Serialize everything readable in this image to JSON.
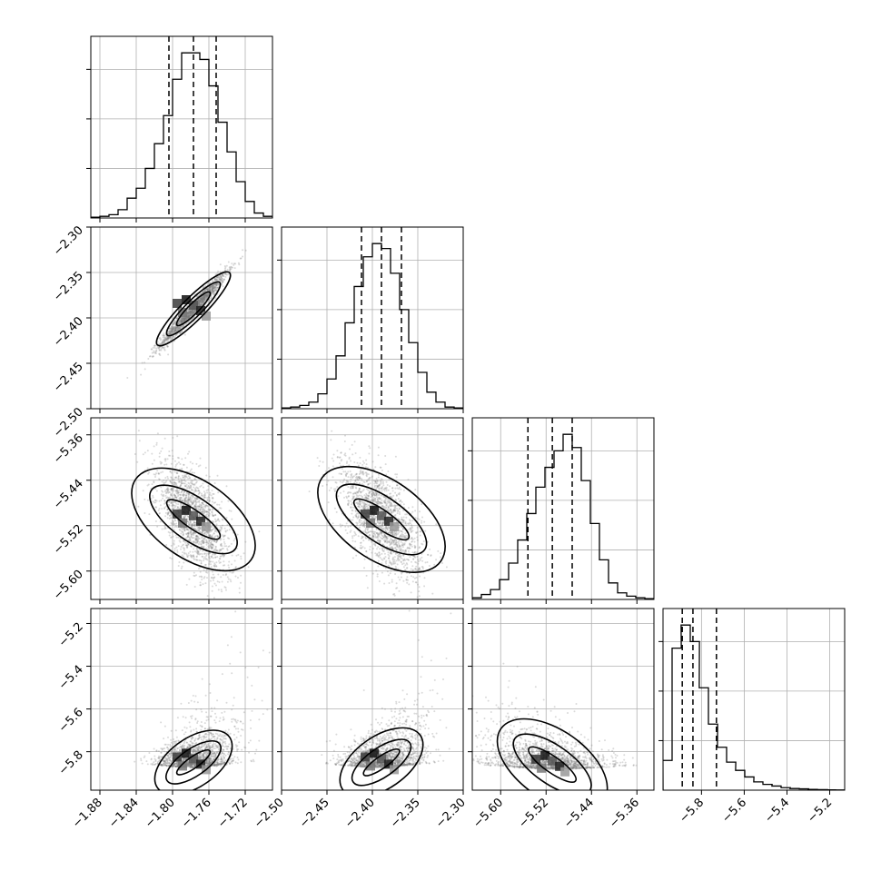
{
  "chart_data": {
    "type": "corner",
    "title": "",
    "grid": true,
    "params": [
      {
        "label": "",
        "range": [
          -1.89,
          -1.69
        ],
        "ticks": [
          -1.88,
          -1.84,
          -1.8,
          -1.76,
          -1.72
        ],
        "tick_labels": [
          "−1.88",
          "−1.84",
          "−1.80",
          "−1.76",
          "−1.72"
        ],
        "quantiles": [
          -1.804,
          -1.777,
          -1.752
        ]
      },
      {
        "label": "",
        "range": [
          -2.5,
          -2.3
        ],
        "ticks": [
          -2.5,
          -2.45,
          -2.4,
          -2.35,
          -2.3
        ],
        "tick_labels": [
          "−2.50",
          "−2.45",
          "−2.40",
          "−2.35",
          "−2.30"
        ],
        "quantiles": [
          -2.412,
          -2.39,
          -2.368
        ]
      },
      {
        "label": "",
        "range": [
          -5.65,
          -5.33
        ],
        "ticks": [
          -5.6,
          -5.52,
          -5.44,
          -5.36
        ],
        "tick_labels": [
          "−5.60",
          "−5.52",
          "−5.44",
          "−5.36"
        ],
        "quantiles": [
          -5.552,
          -5.509,
          -5.474
        ]
      },
      {
        "label": "",
        "range": [
          -5.98,
          -5.13
        ],
        "ticks": [
          -5.8,
          -5.6,
          -5.4,
          -5.2
        ],
        "tick_labels": [
          "−5.8",
          "−5.6",
          "−5.4",
          "−5.2"
        ],
        "quantiles": [
          -5.89,
          -5.84,
          -5.73
        ]
      }
    ],
    "histograms": [
      {
        "param": 0,
        "bin_centers": [
          -1.885,
          -1.875,
          -1.865,
          -1.855,
          -1.845,
          -1.835,
          -1.825,
          -1.815,
          -1.805,
          -1.795,
          -1.785,
          -1.775,
          -1.765,
          -1.755,
          -1.745,
          -1.735,
          -1.725,
          -1.715,
          -1.705,
          -1.695
        ],
        "counts": [
          0.005,
          0.01,
          0.02,
          0.05,
          0.12,
          0.18,
          0.3,
          0.45,
          0.62,
          0.84,
          1.0,
          1.0,
          0.96,
          0.8,
          0.58,
          0.4,
          0.22,
          0.1,
          0.03,
          0.01
        ]
      },
      {
        "param": 1,
        "bin_centers": [
          -2.495,
          -2.485,
          -2.475,
          -2.465,
          -2.455,
          -2.445,
          -2.435,
          -2.425,
          -2.415,
          -2.405,
          -2.395,
          -2.385,
          -2.375,
          -2.365,
          -2.355,
          -2.345,
          -2.335,
          -2.325,
          -2.315,
          -2.305
        ],
        "counts": [
          0.005,
          0.01,
          0.02,
          0.04,
          0.09,
          0.18,
          0.32,
          0.52,
          0.74,
          0.92,
          1.0,
          0.97,
          0.82,
          0.6,
          0.4,
          0.22,
          0.1,
          0.04,
          0.01,
          0.005
        ]
      },
      {
        "param": 2,
        "bin_centers": [
          -5.642,
          -5.626,
          -5.61,
          -5.594,
          -5.578,
          -5.562,
          -5.546,
          -5.53,
          -5.514,
          -5.498,
          -5.482,
          -5.466,
          -5.45,
          -5.434,
          -5.418,
          -5.402,
          -5.386,
          -5.37,
          -5.354,
          -5.338
        ],
        "counts": [
          0.01,
          0.03,
          0.06,
          0.12,
          0.22,
          0.36,
          0.52,
          0.68,
          0.8,
          0.9,
          1.0,
          0.92,
          0.72,
          0.46,
          0.24,
          0.1,
          0.04,
          0.02,
          0.01,
          0.005
        ]
      },
      {
        "param": 3,
        "bin_centers": [
          -5.959,
          -5.916,
          -5.874,
          -5.831,
          -5.789,
          -5.746,
          -5.704,
          -5.661,
          -5.619,
          -5.576,
          -5.534,
          -5.491,
          -5.449,
          -5.406,
          -5.364,
          -5.321,
          -5.279,
          -5.236,
          -5.194,
          -5.151
        ],
        "counts": [
          0.18,
          0.86,
          1.0,
          0.9,
          0.62,
          0.4,
          0.26,
          0.17,
          0.12,
          0.08,
          0.05,
          0.035,
          0.025,
          0.015,
          0.01,
          0.008,
          0.005,
          0.003,
          0.002,
          0.001
        ]
      }
    ],
    "pairs": [
      {
        "x": 0,
        "y": 1,
        "center": [
          -1.777,
          -2.39
        ],
        "sigma": [
          0.018,
          0.02
        ],
        "rho": 0.97,
        "skew": 0
      },
      {
        "x": 0,
        "y": 2,
        "center": [
          -1.777,
          -5.509
        ],
        "sigma": [
          0.02,
          0.05
        ],
        "rho": -0.6,
        "skew": 0
      },
      {
        "x": 1,
        "y": 2,
        "center": [
          -2.39,
          -5.509
        ],
        "sigma": [
          0.022,
          0.05
        ],
        "rho": -0.6,
        "skew": 0
      },
      {
        "x": 0,
        "y": 3,
        "center": [
          -1.777,
          -5.85
        ],
        "sigma": [
          0.02,
          0.05
        ],
        "rho": 0.3,
        "skew": 1
      },
      {
        "x": 1,
        "y": 3,
        "center": [
          -2.39,
          -5.85
        ],
        "sigma": [
          0.022,
          0.05
        ],
        "rho": 0.3,
        "skew": 1
      },
      {
        "x": 2,
        "y": 3,
        "center": [
          -5.509,
          -5.86
        ],
        "sigma": [
          0.05,
          0.045
        ],
        "rho": -0.3,
        "skew": -1
      }
    ]
  }
}
